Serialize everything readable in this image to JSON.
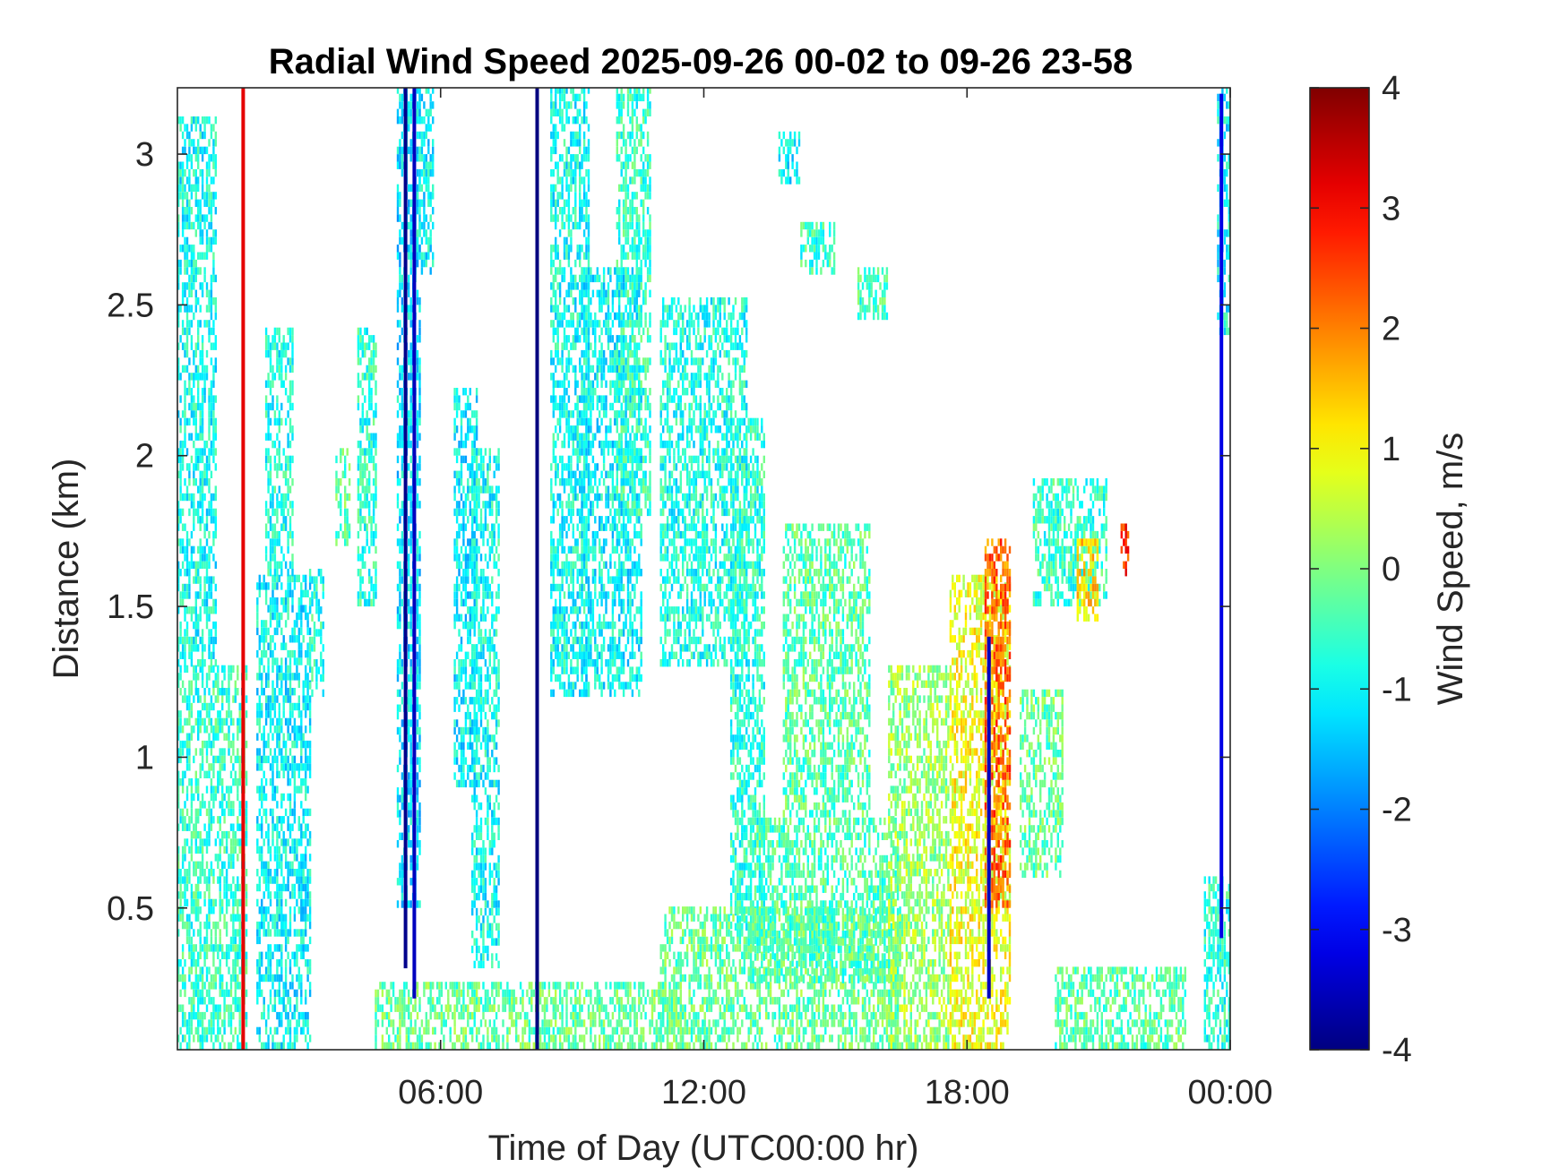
{
  "chart_data": {
    "type": "heatmap",
    "title": "Radial Wind Speed 2025-09-26 00-02 to 09-26 23-58",
    "xlabel": "Time of Day (UTC00:00 hr)",
    "ylabel": "Distance (km)",
    "xlim": [
      0,
      24
    ],
    "ylim": [
      0.03,
      3.22
    ],
    "x_ticks": [
      {
        "value": 6,
        "label": "06:00"
      },
      {
        "value": 12,
        "label": "12:00"
      },
      {
        "value": 18,
        "label": "18:00"
      },
      {
        "value": 24,
        "label": "00:00"
      }
    ],
    "y_ticks": [
      {
        "value": 0.5,
        "label": "0.5"
      },
      {
        "value": 1,
        "label": "1"
      },
      {
        "value": 1.5,
        "label": "1.5"
      },
      {
        "value": 2,
        "label": "2"
      },
      {
        "value": 2.5,
        "label": "2.5"
      },
      {
        "value": 3,
        "label": "3"
      }
    ],
    "colorbar": {
      "label": "Wind Speed, m/s",
      "range": [
        -4,
        4
      ],
      "colormap": "jet",
      "ticks": [
        {
          "value": 4,
          "label": "4"
        },
        {
          "value": 3,
          "label": "3"
        },
        {
          "value": 2,
          "label": "2"
        },
        {
          "value": 1,
          "label": "1"
        },
        {
          "value": 0,
          "label": "0"
        },
        {
          "value": -1,
          "label": "-1"
        },
        {
          "value": -2,
          "label": "-2"
        },
        {
          "value": -3,
          "label": "-3"
        },
        {
          "value": -4,
          "label": "-4"
        }
      ]
    },
    "regions": [
      {
        "t0": 0.0,
        "t1": 1.6,
        "d0": 0.03,
        "d1": 1.3,
        "v": -0.6
      },
      {
        "t0": 0.0,
        "t1": 0.9,
        "d0": 1.3,
        "d1": 3.1,
        "v": -0.9
      },
      {
        "t0": 1.8,
        "t1": 3.0,
        "d0": 0.03,
        "d1": 1.6,
        "v": -1.0
      },
      {
        "t0": 2.0,
        "t1": 2.6,
        "d0": 1.6,
        "d1": 2.4,
        "v": -0.8
      },
      {
        "t0": 3.0,
        "t1": 3.3,
        "d0": 1.2,
        "d1": 1.6,
        "v": -0.7
      },
      {
        "t0": 3.6,
        "t1": 3.9,
        "d0": 1.7,
        "d1": 2.0,
        "v": -0.3
      },
      {
        "t0": 4.1,
        "t1": 4.5,
        "d0": 1.5,
        "d1": 2.4,
        "v": -0.7
      },
      {
        "t0": 5.4,
        "t1": 5.8,
        "d0": 2.6,
        "d1": 3.2,
        "v": -1.0
      },
      {
        "t0": 5.0,
        "t1": 5.5,
        "d0": 0.5,
        "d1": 3.2,
        "v": -1.2
      },
      {
        "t0": 6.3,
        "t1": 6.8,
        "d0": 0.9,
        "d1": 2.2,
        "v": -1.1
      },
      {
        "t0": 6.7,
        "t1": 7.3,
        "d0": 0.3,
        "d1": 2.0,
        "v": -0.9
      },
      {
        "t0": 4.5,
        "t1": 11.5,
        "d0": 0.03,
        "d1": 0.25,
        "v": -0.2
      },
      {
        "t0": 8.5,
        "t1": 9.4,
        "d0": 1.2,
        "d1": 3.2,
        "v": -0.9
      },
      {
        "t0": 9.2,
        "t1": 10.6,
        "d0": 1.2,
        "d1": 2.6,
        "v": -1.0
      },
      {
        "t0": 10.0,
        "t1": 10.8,
        "d0": 1.8,
        "d1": 3.2,
        "v": -0.6
      },
      {
        "t0": 11.0,
        "t1": 13.0,
        "d0": 1.3,
        "d1": 2.5,
        "v": -0.8
      },
      {
        "t0": 12.6,
        "t1": 13.4,
        "d0": 0.4,
        "d1": 2.1,
        "v": -0.7
      },
      {
        "t0": 13.7,
        "t1": 14.2,
        "d0": 2.9,
        "d1": 3.05,
        "v": -1.0
      },
      {
        "t0": 14.2,
        "t1": 15.0,
        "d0": 2.6,
        "d1": 2.75,
        "v": -0.6
      },
      {
        "t0": 15.5,
        "t1": 16.2,
        "d0": 2.45,
        "d1": 2.6,
        "v": -0.5
      },
      {
        "t0": 13.8,
        "t1": 15.8,
        "d0": 0.8,
        "d1": 1.75,
        "v": -0.3
      },
      {
        "t0": 11.0,
        "t1": 16.5,
        "d0": 0.03,
        "d1": 0.5,
        "v": -0.2
      },
      {
        "t0": 13.0,
        "t1": 16.5,
        "d0": 0.25,
        "d1": 0.8,
        "v": -0.4
      },
      {
        "t0": 16.2,
        "t1": 17.6,
        "d0": 0.03,
        "d1": 1.3,
        "v": 0.2
      },
      {
        "t0": 17.6,
        "t1": 19.0,
        "d0": 0.03,
        "d1": 1.6,
        "v": 0.9
      },
      {
        "t0": 18.4,
        "t1": 19.0,
        "d0": 0.5,
        "d1": 1.7,
        "v": 2.2
      },
      {
        "t0": 19.2,
        "t1": 20.2,
        "d0": 0.6,
        "d1": 1.2,
        "v": -0.2
      },
      {
        "t0": 19.5,
        "t1": 21.2,
        "d0": 1.5,
        "d1": 1.9,
        "v": -0.6
      },
      {
        "t0": 20.5,
        "t1": 21.0,
        "d0": 1.45,
        "d1": 1.7,
        "v": 1.3
      },
      {
        "t0": 21.5,
        "t1": 21.7,
        "d0": 1.6,
        "d1": 1.75,
        "v": 2.6
      },
      {
        "t0": 20.0,
        "t1": 23.0,
        "d0": 0.03,
        "d1": 0.3,
        "v": -0.3
      },
      {
        "t0": 23.4,
        "t1": 24.0,
        "d0": 0.03,
        "d1": 0.6,
        "v": -0.7
      },
      {
        "t0": 23.7,
        "t1": 24.0,
        "d0": 2.4,
        "d1": 3.2,
        "v": -1.0
      }
    ],
    "streaks": [
      {
        "t": 1.5,
        "d0": 0.03,
        "d1": 3.22,
        "v": 3.2
      },
      {
        "t": 5.2,
        "d0": 0.3,
        "d1": 3.22,
        "v": -3.9
      },
      {
        "t": 5.4,
        "d0": 0.2,
        "d1": 3.22,
        "v": -3.5
      },
      {
        "t": 8.2,
        "d0": 0.03,
        "d1": 3.22,
        "v": -4.0
      },
      {
        "t": 18.5,
        "d0": 0.2,
        "d1": 1.4,
        "v": -3.5
      },
      {
        "t": 23.8,
        "d0": 0.4,
        "d1": 3.2,
        "v": -3.2
      }
    ]
  }
}
